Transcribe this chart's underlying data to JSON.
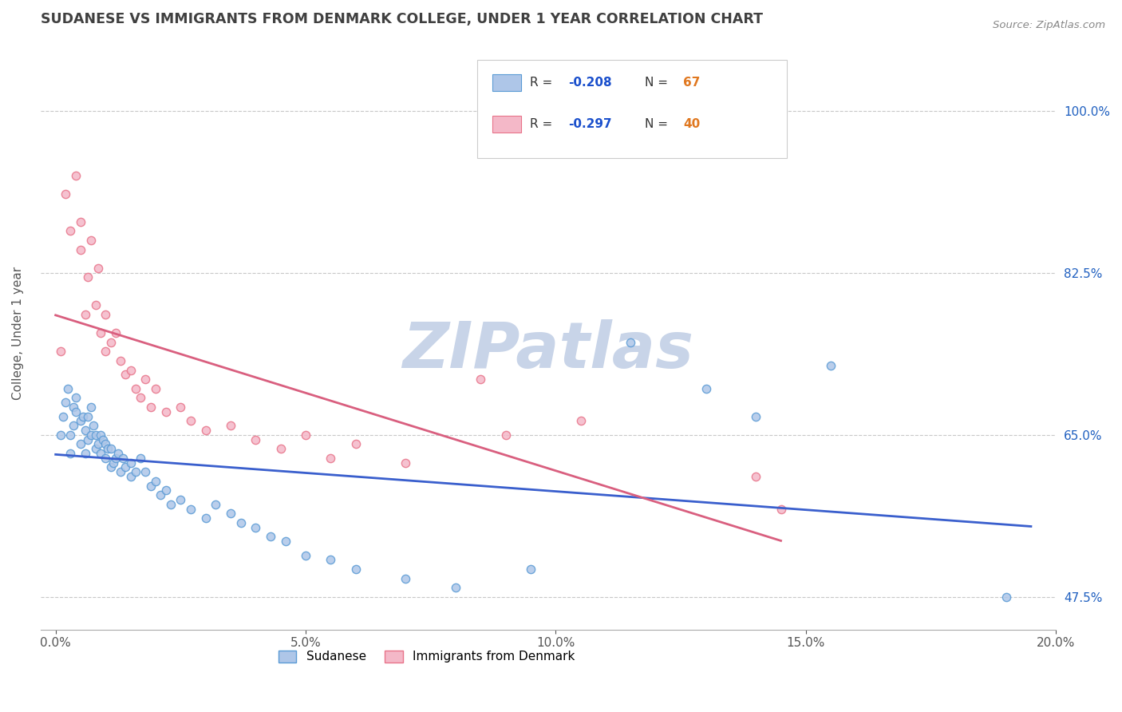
{
  "title": "SUDANESE VS IMMIGRANTS FROM DENMARK COLLEGE, UNDER 1 YEAR CORRELATION CHART",
  "source_text": "Source: ZipAtlas.com",
  "ylabel": "College, Under 1 year",
  "xlim": [
    0.0,
    20.0
  ],
  "ylim": [
    44.0,
    108.0
  ],
  "yticks": [
    47.5,
    65.0,
    82.5,
    100.0
  ],
  "xticks": [
    0.0,
    5.0,
    10.0,
    15.0,
    20.0
  ],
  "xtick_labels": [
    "0.0%",
    "5.0%",
    "10.0%",
    "15.0%",
    "20.0%"
  ],
  "ytick_labels": [
    "47.5%",
    "65.0%",
    "82.5%",
    "100.0%"
  ],
  "series1_name": "Sudanese",
  "series1_color": "#aec6e8",
  "series1_edge_color": "#5b9bd5",
  "series1_R": "-0.208",
  "series1_N": "67",
  "series2_name": "Immigrants from Denmark",
  "series2_color": "#f4b8c8",
  "series2_edge_color": "#e8748a",
  "series2_R": "-0.297",
  "series2_N": "40",
  "line1_color": "#3a5fcd",
  "line2_color": "#d95f7f",
  "background_color": "#ffffff",
  "grid_color": "#c8c8c8",
  "title_color": "#404040",
  "watermark": "ZIPatlas",
  "watermark_color": "#c8d4e8",
  "legend_R_color": "#1a4fcc",
  "legend_N_color": "#e07820",
  "series1_x": [
    0.1,
    0.15,
    0.2,
    0.25,
    0.3,
    0.3,
    0.35,
    0.35,
    0.4,
    0.4,
    0.5,
    0.5,
    0.55,
    0.6,
    0.6,
    0.65,
    0.65,
    0.7,
    0.7,
    0.75,
    0.8,
    0.8,
    0.85,
    0.9,
    0.9,
    0.95,
    1.0,
    1.0,
    1.05,
    1.1,
    1.1,
    1.15,
    1.2,
    1.25,
    1.3,
    1.35,
    1.4,
    1.5,
    1.5,
    1.6,
    1.7,
    1.8,
    1.9,
    2.0,
    2.1,
    2.2,
    2.3,
    2.5,
    2.7,
    3.0,
    3.2,
    3.5,
    3.7,
    4.0,
    4.3,
    4.6,
    5.0,
    5.5,
    6.0,
    7.0,
    8.0,
    9.5,
    11.5,
    13.0,
    14.0,
    15.5,
    19.0
  ],
  "series1_y": [
    65.0,
    67.0,
    68.5,
    70.0,
    63.0,
    65.0,
    66.0,
    68.0,
    67.5,
    69.0,
    64.0,
    66.5,
    67.0,
    63.0,
    65.5,
    64.5,
    67.0,
    65.0,
    68.0,
    66.0,
    63.5,
    65.0,
    64.0,
    63.0,
    65.0,
    64.5,
    62.5,
    64.0,
    63.5,
    61.5,
    63.5,
    62.0,
    62.5,
    63.0,
    61.0,
    62.5,
    61.5,
    60.5,
    62.0,
    61.0,
    62.5,
    61.0,
    59.5,
    60.0,
    58.5,
    59.0,
    57.5,
    58.0,
    57.0,
    56.0,
    57.5,
    56.5,
    55.5,
    55.0,
    54.0,
    53.5,
    52.0,
    51.5,
    50.5,
    49.5,
    48.5,
    50.5,
    75.0,
    70.0,
    67.0,
    72.5,
    47.5
  ],
  "series2_x": [
    0.1,
    0.2,
    0.3,
    0.4,
    0.5,
    0.5,
    0.6,
    0.65,
    0.7,
    0.8,
    0.85,
    0.9,
    1.0,
    1.0,
    1.1,
    1.2,
    1.3,
    1.4,
    1.5,
    1.6,
    1.7,
    1.8,
    1.9,
    2.0,
    2.2,
    2.5,
    2.7,
    3.0,
    3.5,
    4.0,
    4.5,
    5.0,
    5.5,
    6.0,
    7.0,
    8.5,
    9.0,
    10.5,
    14.0,
    14.5
  ],
  "series2_y": [
    74.0,
    91.0,
    87.0,
    93.0,
    85.0,
    88.0,
    78.0,
    82.0,
    86.0,
    79.0,
    83.0,
    76.0,
    74.0,
    78.0,
    75.0,
    76.0,
    73.0,
    71.5,
    72.0,
    70.0,
    69.0,
    71.0,
    68.0,
    70.0,
    67.5,
    68.0,
    66.5,
    65.5,
    66.0,
    64.5,
    63.5,
    65.0,
    62.5,
    64.0,
    62.0,
    71.0,
    65.0,
    66.5,
    60.5,
    57.0
  ]
}
